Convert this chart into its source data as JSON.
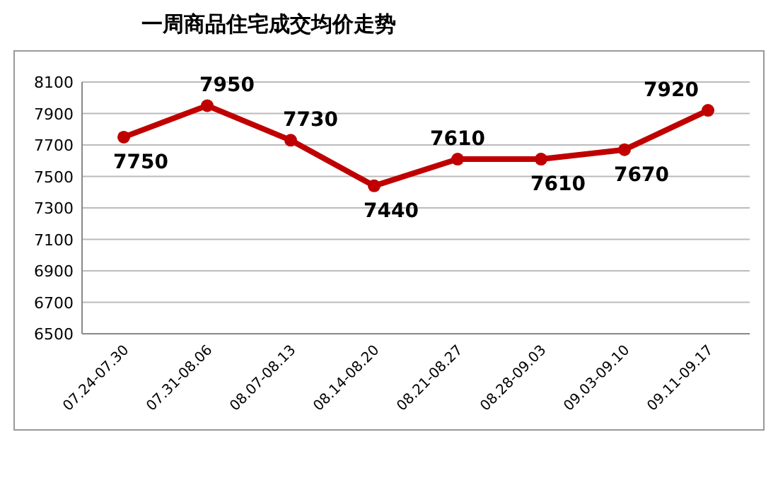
{
  "chart_data": {
    "type": "line",
    "title": "一周商品住宅成交均价走势",
    "categories": [
      "07.24-07.30",
      "07.31-08.06",
      "08.07-08.13",
      "08.14-08.20",
      "08.21-08.27",
      "08.28-09.03",
      "09.03-09.10",
      "09.11-09.17"
    ],
    "series": [
      {
        "color": "#c00000",
        "values": [
          7750,
          7950,
          7730,
          7440,
          7610,
          7610,
          7670,
          7920
        ]
      }
    ],
    "ylim": [
      6500,
      8100
    ],
    "yticks": [
      6500,
      6700,
      6900,
      7100,
      7300,
      7500,
      7700,
      7900,
      8100
    ],
    "grid": "y",
    "marker": "circle",
    "data_labels": true
  }
}
